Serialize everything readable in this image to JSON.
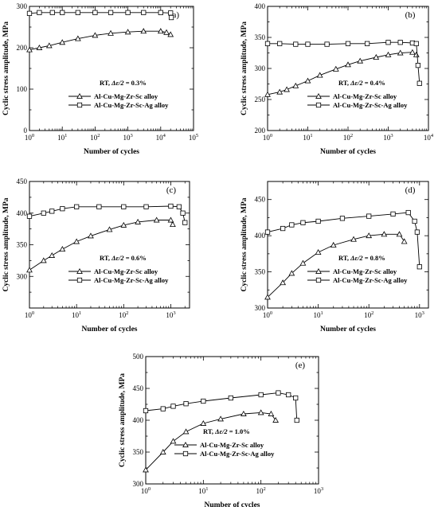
{
  "chart_data": [
    {
      "type": "line",
      "panel": "(a)",
      "title": "",
      "xlabel": "Number of cycles",
      "ylabel": "Cyclic stress amplitude, MPa",
      "xscale": "log",
      "xlim": [
        1,
        100000
      ],
      "ylim": [
        0,
        300
      ],
      "xticks": [
        {
          "v": 1,
          "l": "10",
          "s": "0"
        },
        {
          "v": 10,
          "l": "10",
          "s": "1"
        },
        {
          "v": 100,
          "l": "10",
          "s": "2"
        },
        {
          "v": 1000,
          "l": "10",
          "s": "3"
        },
        {
          "v": 10000,
          "l": "10",
          "s": "4"
        },
        {
          "v": 100000,
          "l": "10",
          "s": "5"
        }
      ],
      "yticks": [
        0,
        100,
        200,
        300
      ],
      "condition": {
        "prefix": "RT, ",
        "sym": "Δε/2",
        "rest": " = 0.3%"
      },
      "legend_position": "center-right",
      "series": [
        {
          "name": "Al-Cu-Mg-Zr-Sc alloy",
          "marker": "triangle",
          "x": [
            1,
            2,
            4,
            10,
            30,
            100,
            300,
            1000,
            3000,
            10000,
            15000,
            20000
          ],
          "y": [
            195,
            200,
            205,
            213,
            222,
            230,
            235,
            238,
            240,
            240,
            237,
            232
          ]
        },
        {
          "name": "Al-Cu-Mg-Zr-Sc-Ag alloy",
          "marker": "square",
          "x": [
            1,
            2,
            5,
            10,
            30,
            100,
            300,
            1000,
            3000,
            10000,
            20000,
            21000
          ],
          "y": [
            283,
            285,
            285,
            285,
            285,
            285,
            285,
            285,
            285,
            285,
            284,
            273
          ]
        }
      ]
    },
    {
      "type": "line",
      "panel": "(b)",
      "title": "",
      "xlabel": "Number of cycles",
      "ylabel": "Cyclic stress amplitude, MPa",
      "xscale": "log",
      "xlim": [
        1,
        10000
      ],
      "ylim": [
        200,
        400
      ],
      "xticks": [
        {
          "v": 1,
          "l": "10",
          "s": "0"
        },
        {
          "v": 10,
          "l": "10",
          "s": "1"
        },
        {
          "v": 100,
          "l": "10",
          "s": "2"
        },
        {
          "v": 1000,
          "l": "10",
          "s": "3"
        },
        {
          "v": 10000,
          "l": "10",
          "s": "4"
        }
      ],
      "yticks": [
        200,
        250,
        300,
        350,
        400
      ],
      "condition": {
        "prefix": "RT, ",
        "sym": "Δε/2",
        "rest": " = 0.4%"
      },
      "legend_position": "center-right",
      "series": [
        {
          "name": "Al-Cu-Mg-Zr-Sc alloy",
          "marker": "triangle",
          "x": [
            1,
            2,
            3,
            5,
            10,
            20,
            50,
            100,
            200,
            500,
            1000,
            2000,
            4000,
            5000
          ],
          "y": [
            258,
            262,
            266,
            272,
            280,
            289,
            299,
            306,
            312,
            318,
            322,
            325,
            326,
            322
          ]
        },
        {
          "name": "Al-Cu-Mg-Zr-Sc-Ag alloy",
          "marker": "square",
          "x": [
            1,
            2,
            5,
            10,
            30,
            100,
            300,
            1000,
            2000,
            4000,
            5000,
            5500,
            6000
          ],
          "y": [
            340,
            340,
            339,
            339,
            339,
            340,
            340,
            342,
            342,
            341,
            340,
            305,
            276
          ]
        }
      ]
    },
    {
      "type": "line",
      "panel": "(c)",
      "title": "",
      "xlabel": "Number of cycles",
      "ylabel": "Cyclic stress amplitude, MPa",
      "xscale": "log",
      "xlim": [
        1,
        2500
      ],
      "ylim": [
        250,
        450
      ],
      "xticks": [
        {
          "v": 1,
          "l": "10",
          "s": "0"
        },
        {
          "v": 10,
          "l": "10",
          "s": "1"
        },
        {
          "v": 100,
          "l": "10",
          "s": "2"
        },
        {
          "v": 1000,
          "l": "10",
          "s": "3"
        }
      ],
      "yticks": [
        300,
        350,
        400,
        450
      ],
      "condition": {
        "prefix": "RT, ",
        "sym": "Δε/2",
        "rest": " = 0.6%"
      },
      "legend_position": "center-right",
      "series": [
        {
          "name": "Al-Cu-Mg-Zr-Sc alloy",
          "marker": "triangle",
          "x": [
            1,
            2,
            3,
            5,
            10,
            20,
            50,
            100,
            200,
            500,
            1000,
            1100
          ],
          "y": [
            310,
            325,
            333,
            343,
            355,
            364,
            374,
            381,
            386,
            389,
            389,
            382
          ]
        },
        {
          "name": "Al-Cu-Mg-Zr-Sc-Ag alloy",
          "marker": "square",
          "x": [
            1,
            2,
            3,
            5,
            10,
            30,
            100,
            300,
            1000,
            1500,
            1800,
            2000
          ],
          "y": [
            395,
            400,
            403,
            407,
            410,
            410,
            410,
            410,
            411,
            410,
            400,
            385
          ]
        }
      ]
    },
    {
      "type": "line",
      "panel": "(d)",
      "title": "",
      "xlabel": "Number of cycles",
      "ylabel": "Cyclic stress amplitude, MPa",
      "xscale": "log",
      "xlim": [
        1,
        1500
      ],
      "ylim": [
        300,
        475
      ],
      "xticks": [
        {
          "v": 1,
          "l": "10",
          "s": "0"
        },
        {
          "v": 10,
          "l": "10",
          "s": "1"
        },
        {
          "v": 100,
          "l": "10",
          "s": "2"
        },
        {
          "v": 1000,
          "l": "10",
          "s": "3"
        }
      ],
      "yticks": [
        300,
        350,
        400,
        450
      ],
      "condition": {
        "prefix": "RT, ",
        "sym": "Δε/2",
        "rest": " = 0.8%"
      },
      "legend_position": "center-right",
      "series": [
        {
          "name": "Al-Cu-Mg-Zr-Sc alloy",
          "marker": "triangle",
          "x": [
            1,
            2,
            3,
            5,
            10,
            20,
            50,
            100,
            200,
            400,
            500
          ],
          "y": [
            315,
            335,
            348,
            362,
            377,
            387,
            395,
            400,
            402,
            402,
            392
          ]
        },
        {
          "name": "Al-Cu-Mg-Zr-Sc-Ag alloy",
          "marker": "square",
          "x": [
            1,
            2,
            3,
            5,
            10,
            30,
            100,
            300,
            600,
            800,
            900,
            1000
          ],
          "y": [
            405,
            410,
            415,
            418,
            420,
            424,
            427,
            430,
            432,
            420,
            405,
            357
          ]
        }
      ]
    },
    {
      "type": "line",
      "panel": "(e)",
      "title": "",
      "xlabel": "Number of cycles",
      "ylabel": "Cyclic stress amplitude, MPa",
      "xscale": "log",
      "xlim": [
        1,
        1000
      ],
      "ylim": [
        300,
        500
      ],
      "xticks": [
        {
          "v": 1,
          "l": "10",
          "s": "0"
        },
        {
          "v": 10,
          "l": "10",
          "s": "1"
        },
        {
          "v": 100,
          "l": "10",
          "s": "2"
        },
        {
          "v": 1000,
          "l": "10",
          "s": "3"
        }
      ],
      "yticks": [
        300,
        350,
        400,
        450,
        500
      ],
      "condition": {
        "prefix": "RT, ",
        "sym": "Δε/2",
        "rest": " = 1.0%"
      },
      "legend_position": "center-right",
      "series": [
        {
          "name": "Al-Cu-Mg-Zr-Sc alloy",
          "marker": "triangle",
          "x": [
            1,
            2,
            3,
            5,
            10,
            20,
            50,
            100,
            150,
            180
          ],
          "y": [
            322,
            350,
            367,
            382,
            395,
            402,
            410,
            412,
            410,
            400
          ]
        },
        {
          "name": "Al-Cu-Mg-Zr-Sc-Ag alloy",
          "marker": "square",
          "x": [
            1,
            2,
            3,
            5,
            10,
            30,
            100,
            200,
            300,
            400,
            420
          ],
          "y": [
            415,
            418,
            422,
            426,
            430,
            435,
            440,
            443,
            440,
            435,
            400
          ]
        }
      ]
    }
  ]
}
